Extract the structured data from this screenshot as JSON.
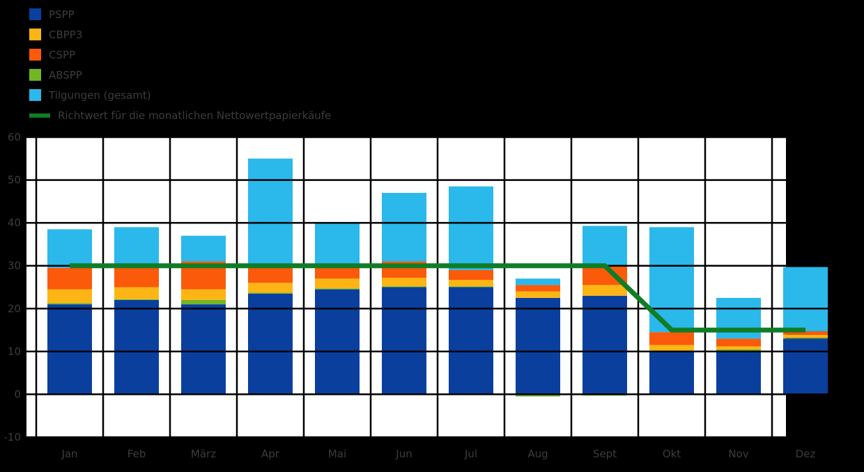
{
  "chart_data": {
    "type": "bar",
    "stacked": true,
    "title": "",
    "categories": [
      "Jan",
      "Feb",
      "März",
      "Apr",
      "Mai",
      "Jun",
      "Jul",
      "Aug",
      "Sept",
      "Okt",
      "Nov",
      "Dez"
    ],
    "series": [
      {
        "name": "PSPP",
        "color": "#0a3f9e",
        "values": [
          21,
          22,
          21,
          23.5,
          24.5,
          25,
          25,
          22.5,
          23,
          10,
          10,
          13
        ]
      },
      {
        "name": "ABSPP",
        "color": "#72b626",
        "values": [
          0.3,
          0.2,
          1,
          0.2,
          0.2,
          0.2,
          0.2,
          -0.5,
          -0.3,
          0.2,
          0.5,
          0.2
        ]
      },
      {
        "name": "CBPP3",
        "color": "#fdb515",
        "values": [
          3.2,
          2.8,
          2.5,
          2.3,
          2.3,
          2,
          1.5,
          1.5,
          2.5,
          1.3,
          0.7,
          0.7
        ]
      },
      {
        "name": "CSPP",
        "color": "#fa5a0a",
        "values": [
          5,
          4.5,
          6.5,
          3.5,
          3.5,
          3.8,
          2.3,
          1.5,
          4.3,
          3,
          1.8,
          0.8
        ]
      },
      {
        "name": "Tilgungen (gesamt)",
        "color": "#2bb8ea",
        "values": [
          9,
          9.5,
          6,
          25.5,
          9.5,
          16,
          19.5,
          1.5,
          9.5,
          24.5,
          9.5,
          15
        ]
      }
    ],
    "line_series": {
      "name": "Richtwert für die monatlichen Nettowertpapierkäufe",
      "color": "#0f7d26",
      "values": [
        30,
        30,
        30,
        30,
        30,
        30,
        30,
        30,
        30,
        15,
        15,
        15
      ]
    },
    "y_ticks": [
      -10,
      0,
      10,
      20,
      30,
      40,
      50,
      60
    ],
    "ylim": [
      -10,
      60
    ],
    "grid": true,
    "legend_position": "top-left",
    "colors": {
      "page_background": "#000000",
      "plot_background": "#ffffff",
      "grid_line": "#000000",
      "axis_text": "#3c3c3c"
    }
  },
  "legend": {
    "items": [
      {
        "label": "PSPP",
        "color": "#0a3f9e",
        "swatch": "square"
      },
      {
        "label": "CBPP3",
        "color": "#fdb515",
        "swatch": "square"
      },
      {
        "label": "CSPP",
        "color": "#fa5a0a",
        "swatch": "square"
      },
      {
        "label": "ABSPP",
        "color": "#72b626",
        "swatch": "square"
      },
      {
        "label": "Tilgungen (gesamt)",
        "color": "#2bb8ea",
        "swatch": "square"
      },
      {
        "label": "Richtwert für die monatlichen Nettowertpapierkäufe",
        "color": "#0f7d26",
        "swatch": "line"
      }
    ]
  }
}
